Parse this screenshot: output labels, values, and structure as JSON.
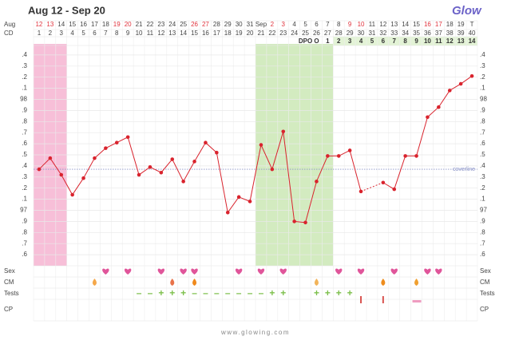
{
  "header": {
    "title": "Aug 12 - Sep 20",
    "logo": "Glow"
  },
  "footer": "www.glowing.com",
  "chart_data": {
    "type": "line",
    "month_label": "Aug",
    "cd_label": "CD",
    "dates": [
      "12",
      "13",
      "14",
      "15",
      "16",
      "17",
      "18",
      "19",
      "20",
      "21",
      "22",
      "23",
      "24",
      "25",
      "26",
      "27",
      "28",
      "29",
      "30",
      "31",
      "Sep",
      "2",
      "3",
      "4",
      "5",
      "6",
      "7",
      "8",
      "9",
      "10",
      "11",
      "12",
      "13",
      "14",
      "15",
      "16",
      "17",
      "18",
      "19",
      "T"
    ],
    "weekend": [
      true,
      true,
      false,
      false,
      false,
      false,
      false,
      true,
      true,
      false,
      false,
      false,
      false,
      false,
      true,
      true,
      false,
      false,
      false,
      false,
      false,
      true,
      true,
      false,
      false,
      false,
      false,
      false,
      true,
      true,
      false,
      false,
      false,
      false,
      false,
      true,
      true,
      false,
      false,
      false
    ],
    "categories": [
      "1",
      "2",
      "3",
      "4",
      "5",
      "6",
      "7",
      "8",
      "9",
      "10",
      "11",
      "12",
      "13",
      "14",
      "15",
      "16",
      "17",
      "18",
      "19",
      "20",
      "21",
      "22",
      "23",
      "24",
      "25",
      "26",
      "27",
      "28",
      "29",
      "30",
      "31",
      "32",
      "33",
      "34",
      "35",
      "36",
      "37",
      "38",
      "39",
      "40"
    ],
    "dpo": [
      null,
      null,
      null,
      null,
      null,
      null,
      null,
      null,
      null,
      null,
      null,
      null,
      null,
      null,
      null,
      null,
      null,
      null,
      null,
      null,
      null,
      null,
      null,
      null,
      "DPO",
      "O",
      "1",
      "2",
      "3",
      "4",
      "5",
      "6",
      "7",
      "8",
      "9",
      "10",
      "11",
      "12",
      "13",
      "14"
    ],
    "dpo_highlight": {
      "from": "28",
      "to": "40",
      "color": "#e3f3d6"
    },
    "highlights": [
      {
        "from": "1",
        "to": "3",
        "color": "#f7bfd8"
      },
      {
        "from": "21",
        "to": "27",
        "color": "#d3ebc0"
      }
    ],
    "values": [
      97.37,
      97.47,
      97.32,
      97.14,
      97.29,
      97.47,
      97.56,
      97.61,
      97.66,
      97.32,
      97.39,
      97.34,
      97.46,
      97.26,
      97.44,
      97.61,
      97.52,
      96.98,
      97.12,
      97.08,
      97.59,
      97.37,
      97.71,
      96.9,
      96.89,
      97.26,
      97.49,
      97.49,
      97.54,
      97.17,
      null,
      97.25,
      97.19,
      97.49,
      97.49,
      97.84,
      97.93,
      98.08,
      98.14,
      98.21
    ],
    "color": "#d9232d",
    "ylim": [
      96.5,
      98.5
    ],
    "yticks": [
      {
        "value": 98.4,
        "label": ".4"
      },
      {
        "value": 98.3,
        "label": ".3"
      },
      {
        "value": 98.2,
        "label": ".2"
      },
      {
        "value": 98.1,
        "label": ".1"
      },
      98,
      {
        "value": 97.9,
        "label": ".9"
      },
      {
        "value": 97.8,
        "label": ".8"
      },
      {
        "value": 97.7,
        "label": ".7"
      },
      {
        "value": 97.6,
        "label": ".6"
      },
      {
        "value": 97.5,
        "label": ".5"
      },
      {
        "value": 97.4,
        "label": ".4"
      },
      {
        "value": 97.3,
        "label": ".3"
      },
      {
        "value": 97.2,
        "label": ".2"
      },
      {
        "value": 97.1,
        "label": ".1"
      },
      97,
      {
        "value": 96.9,
        "label": ".9"
      },
      {
        "value": 96.8,
        "label": ".8"
      },
      {
        "value": 96.7,
        "label": ".7"
      },
      {
        "value": 96.6,
        "label": ".6"
      }
    ],
    "grid": true,
    "coverline": {
      "value": 97.37,
      "label": "coverline",
      "color": "#8a93c8"
    },
    "row_labels": [
      "Sex",
      "CM",
      "Tests",
      "CP"
    ],
    "sex_days": [
      "7",
      "9",
      "12",
      "14",
      "15",
      "19",
      "21",
      "23",
      "28",
      "30",
      "33",
      "36",
      "37"
    ],
    "sex_color": "#e0559a",
    "cm": [
      {
        "day": "6",
        "color": "#f5a84a"
      },
      {
        "day": "13",
        "color": "#e8734a"
      },
      {
        "day": "15",
        "color": "#f08a1c"
      },
      {
        "day": "26",
        "color": "#f2b45a"
      },
      {
        "day": "32",
        "color": "#ee8d1e"
      },
      {
        "day": "35",
        "color": "#f0a030"
      }
    ],
    "tests": [
      {
        "day": "10",
        "symbol": "–"
      },
      {
        "day": "11",
        "symbol": "–"
      },
      {
        "day": "12",
        "symbol": "+"
      },
      {
        "day": "13",
        "symbol": "+"
      },
      {
        "day": "14",
        "symbol": "+"
      },
      {
        "day": "15",
        "symbol": "–"
      },
      {
        "day": "16",
        "symbol": "–"
      },
      {
        "day": "17",
        "symbol": "–"
      },
      {
        "day": "18",
        "symbol": "–"
      },
      {
        "day": "19",
        "symbol": "–"
      },
      {
        "day": "20",
        "symbol": "–"
      },
      {
        "day": "21",
        "symbol": "–"
      },
      {
        "day": "22",
        "symbol": "+"
      },
      {
        "day": "23",
        "symbol": "+"
      },
      {
        "day": "26",
        "symbol": "+"
      },
      {
        "day": "27",
        "symbol": "+"
      },
      {
        "day": "28",
        "symbol": "+"
      },
      {
        "day": "29",
        "symbol": "+"
      }
    ],
    "test_color": "#7cbf4a",
    "test_bars": [
      {
        "day": "30",
        "color": "#d9534f",
        "shape": "vertical"
      },
      {
        "day": "32",
        "color": "#d9534f",
        "shape": "vertical"
      },
      {
        "day": "35",
        "color": "#ef9cc0",
        "shape": "horizontal"
      }
    ]
  }
}
